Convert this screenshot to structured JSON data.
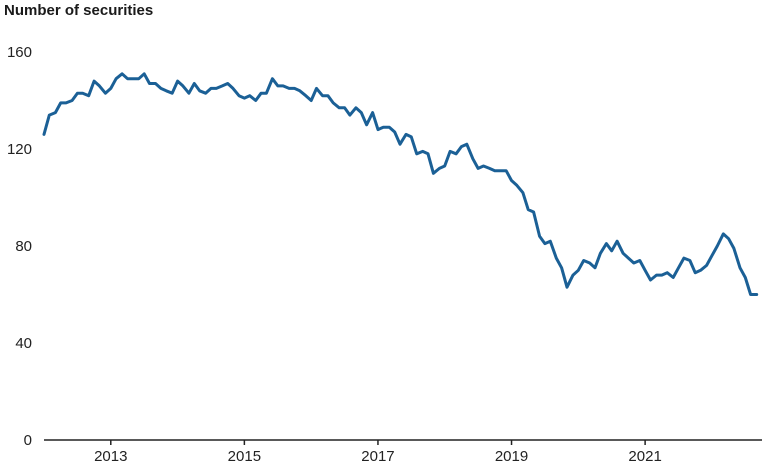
{
  "chart_data": {
    "type": "line",
    "title": "Number of securities",
    "xlabel": "",
    "ylabel": "",
    "ylim": [
      0,
      160
    ],
    "yticks": [
      0,
      40,
      80,
      120,
      160
    ],
    "xlim": [
      2012,
      2022.75
    ],
    "xticks": [
      2013,
      2015,
      2017,
      2019,
      2021
    ],
    "grid": false,
    "line_color": "#1b6096",
    "series": [
      {
        "x": [
          2012.0,
          2012.08,
          2012.17,
          2012.25,
          2012.33,
          2012.42,
          2012.5,
          2012.58,
          2012.67,
          2012.75,
          2012.83,
          2012.92,
          2013.0,
          2013.08,
          2013.17,
          2013.25,
          2013.33,
          2013.42,
          2013.5,
          2013.58,
          2013.67,
          2013.75,
          2013.83,
          2013.92,
          2014.0,
          2014.08,
          2014.17,
          2014.25,
          2014.33,
          2014.42,
          2014.5,
          2014.58,
          2014.67,
          2014.75,
          2014.83,
          2014.92,
          2015.0,
          2015.08,
          2015.17,
          2015.25,
          2015.33,
          2015.42,
          2015.5,
          2015.58,
          2015.67,
          2015.75,
          2015.83,
          2015.92,
          2016.0,
          2016.08,
          2016.17,
          2016.25,
          2016.33,
          2016.42,
          2016.5,
          2016.58,
          2016.67,
          2016.75,
          2016.83,
          2016.92,
          2017.0,
          2017.08,
          2017.17,
          2017.25,
          2017.33,
          2017.42,
          2017.5,
          2017.58,
          2017.67,
          2017.75,
          2017.83,
          2017.92,
          2018.0,
          2018.08,
          2018.17,
          2018.25,
          2018.33,
          2018.42,
          2018.5,
          2018.58,
          2018.67,
          2018.75,
          2018.83,
          2018.92,
          2019.0,
          2019.08,
          2019.17,
          2019.25,
          2019.33,
          2019.42,
          2019.5,
          2019.58,
          2019.67,
          2019.75,
          2019.83,
          2019.92,
          2020.0,
          2020.08,
          2020.17,
          2020.25,
          2020.33,
          2020.42,
          2020.5,
          2020.58,
          2020.67,
          2020.75,
          2020.83,
          2020.92,
          2021.0,
          2021.08,
          2021.17,
          2021.25,
          2021.33,
          2021.42,
          2021.5,
          2021.58,
          2021.67,
          2021.75,
          2021.83,
          2021.92,
          2022.0,
          2022.08,
          2022.17,
          2022.25,
          2022.33,
          2022.42,
          2022.5,
          2022.58,
          2022.67
        ],
        "values": [
          126,
          134,
          135,
          139,
          139,
          140,
          143,
          143,
          142,
          148,
          146,
          143,
          145,
          149,
          151,
          149,
          149,
          149,
          151,
          147,
          147,
          145,
          144,
          143,
          148,
          146,
          143,
          147,
          144,
          143,
          145,
          145,
          146,
          147,
          145,
          142,
          141,
          142,
          140,
          143,
          143,
          149,
          146,
          146,
          145,
          145,
          144,
          142,
          140,
          145,
          142,
          142,
          139,
          137,
          137,
          134,
          137,
          135,
          130,
          135,
          128,
          129,
          129,
          127,
          122,
          126,
          125,
          118,
          119,
          118,
          110,
          112,
          113,
          119,
          118,
          121,
          122,
          116,
          112,
          113,
          112,
          111,
          111,
          111,
          107,
          105,
          102,
          95,
          94,
          84,
          81,
          82,
          75,
          71,
          63,
          68,
          70,
          74,
          73,
          71,
          77,
          81,
          78,
          82,
          77,
          75,
          73,
          74,
          70,
          66,
          68,
          68,
          69,
          67,
          71,
          75,
          74,
          69,
          70,
          72,
          76,
          80,
          85,
          83,
          79,
          71,
          67,
          60,
          60
        ]
      }
    ]
  }
}
